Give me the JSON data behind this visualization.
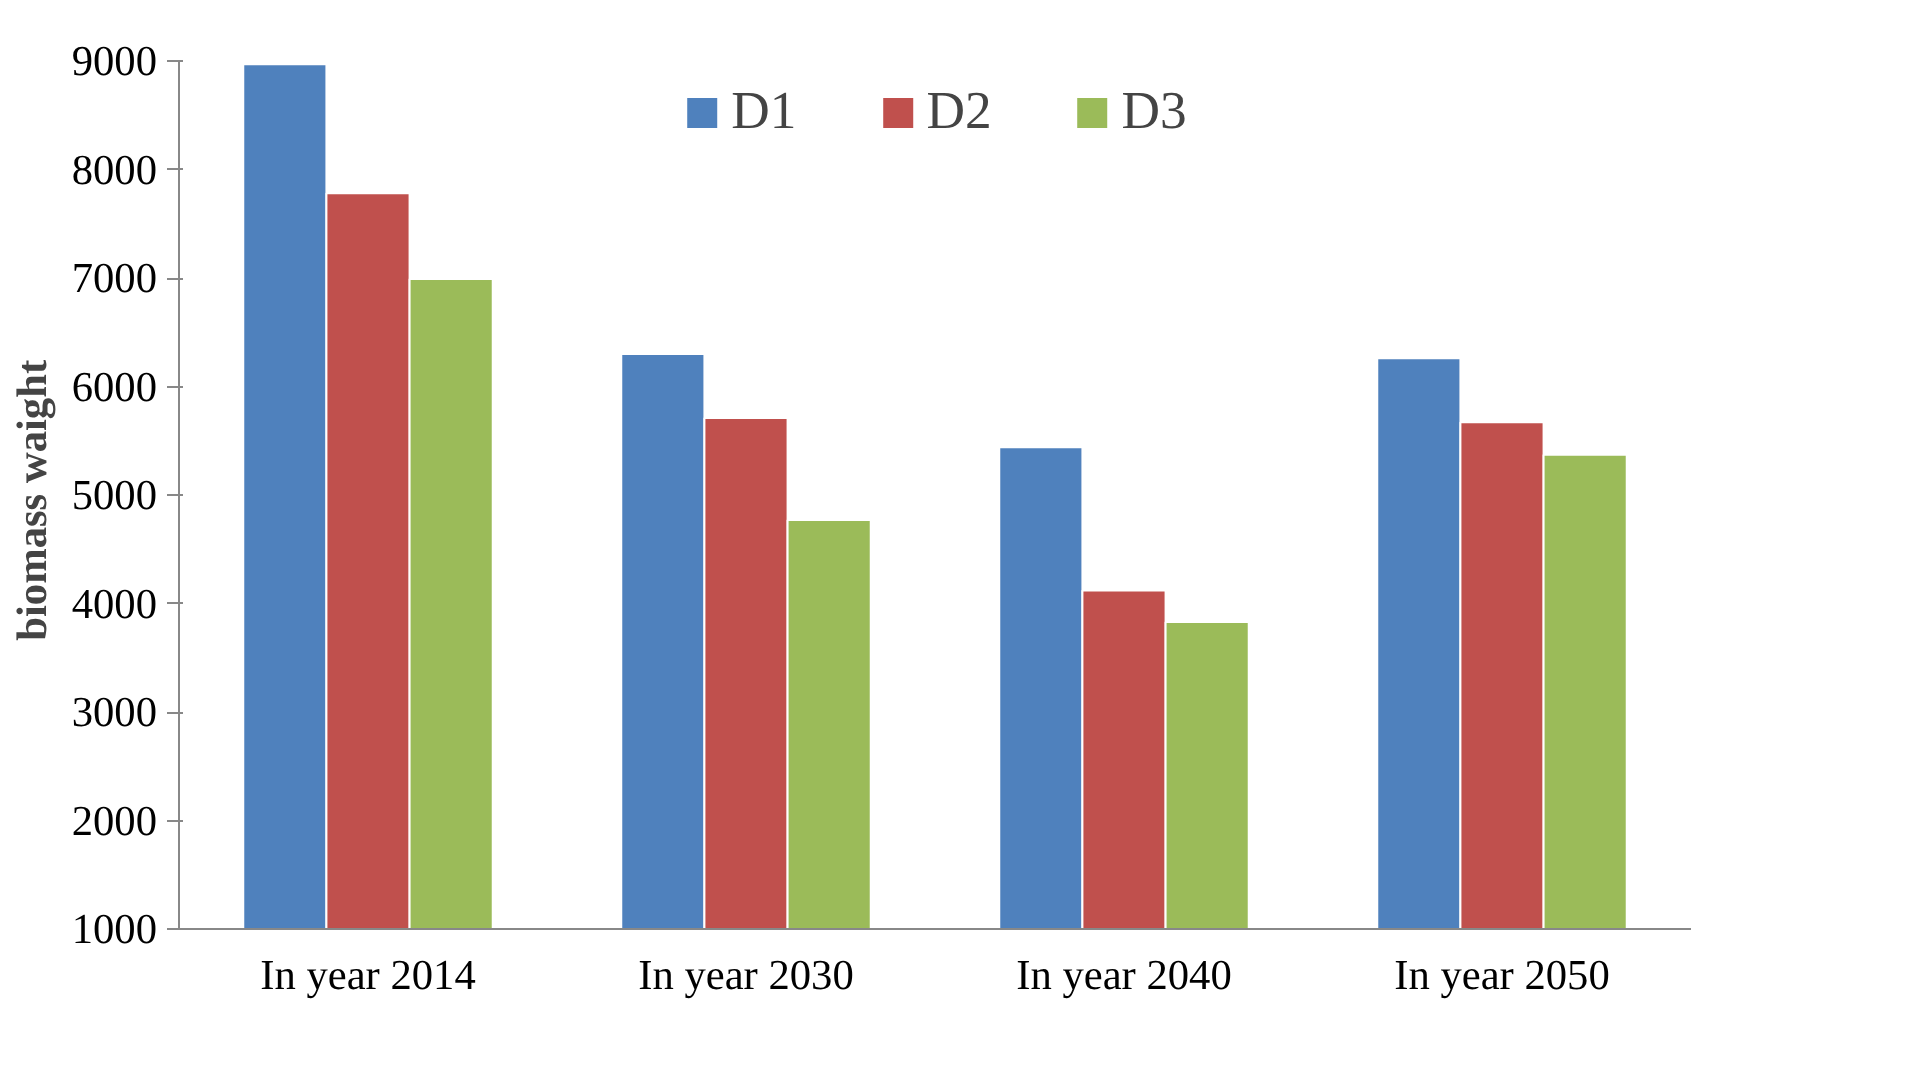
{
  "chart_data": {
    "type": "bar",
    "ylabel": "biomass  waight",
    "categories": [
      "In year 2014",
      "In year 2030",
      "In year 2040",
      "In year 2050"
    ],
    "series": [
      {
        "name": "D1",
        "color": "#4f81bd",
        "values": [
          8970,
          6300,
          5440,
          6260
        ]
      },
      {
        "name": "D2",
        "color": "#c0504d",
        "values": [
          7780,
          5710,
          4120,
          5670
        ]
      },
      {
        "name": "D3",
        "color": "#9bbb59",
        "values": [
          6990,
          4770,
          3830,
          5370
        ]
      }
    ],
    "ylim": [
      1000,
      9000
    ],
    "yticks": [
      1000,
      2000,
      3000,
      4000,
      5000,
      6000,
      7000,
      8000,
      9000
    ],
    "grid": false,
    "legend": "top"
  }
}
